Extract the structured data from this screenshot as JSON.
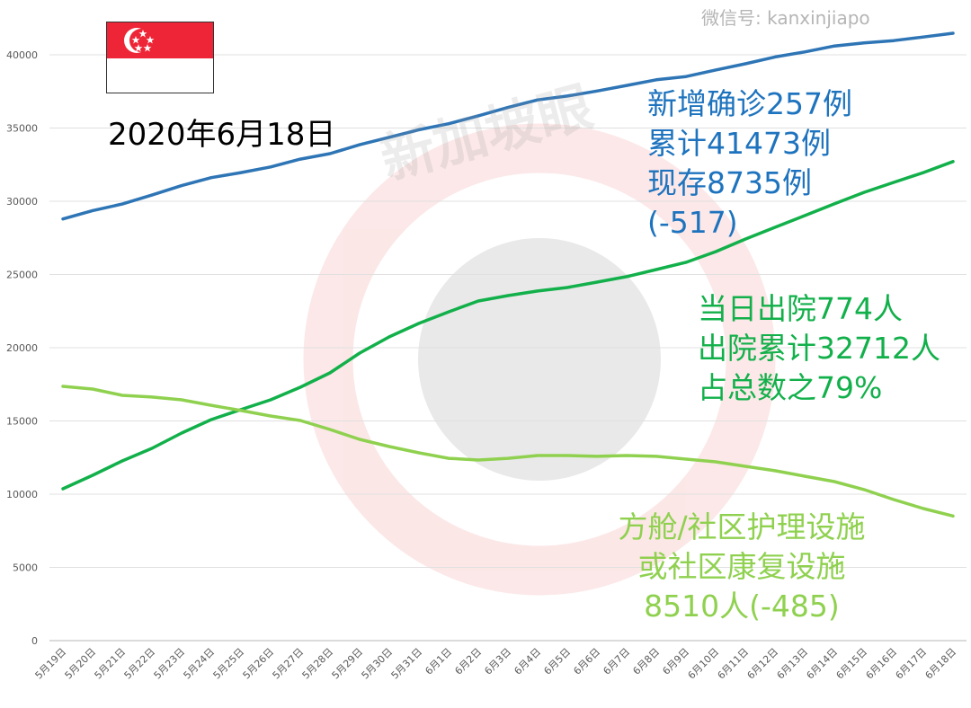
{
  "chart_data": {
    "type": "line",
    "title": "",
    "xlabel": "",
    "ylabel": "",
    "ylim": [
      0,
      40000
    ],
    "yticks": [
      0,
      5000,
      10000,
      15000,
      20000,
      25000,
      30000,
      35000,
      40000
    ],
    "grid": true,
    "categories": [
      "5月19日",
      "5月20日",
      "5月21日",
      "5月22日",
      "5月23日",
      "5月24日",
      "5月25日",
      "5月26日",
      "5月27日",
      "5月28日",
      "5月29日",
      "5月30日",
      "5月31日",
      "6月1日",
      "6月2日",
      "6月3日",
      "6月4日",
      "6月5日",
      "6月6日",
      "6月7日",
      "6月8日",
      "6月9日",
      "6月10日",
      "6月11日",
      "6月12日",
      "6月13日",
      "6月14日",
      "6月15日",
      "6月16日",
      "6月17日",
      "6月18日"
    ],
    "series": [
      {
        "color": "#2e75b6",
        "values": [
          28794,
          29364,
          29812,
          30426,
          31068,
          31616,
          31960,
          32343,
          32876,
          33249,
          33860,
          34366,
          34884,
          35292,
          35836,
          36405,
          36922,
          37183,
          37527,
          37910,
          38296,
          38514,
          38965,
          39387,
          39850,
          40197,
          40604,
          40818,
          40969,
          41216,
          41473
        ]
      },
      {
        "color": "#12b04a",
        "values": [
          10370,
          11290,
          12270,
          13130,
          14170,
          15090,
          15770,
          16440,
          17300,
          18280,
          19630,
          20740,
          21660,
          22450,
          23190,
          23560,
          23870,
          24110,
          24480,
          24850,
          25340,
          25830,
          26560,
          27420,
          28220,
          29020,
          29820,
          30610,
          31290,
          31960,
          32712
        ]
      },
      {
        "color": "#8fd14f",
        "values": [
          17360,
          17180,
          16750,
          16630,
          16440,
          16070,
          15710,
          15340,
          15030,
          14420,
          13740,
          13250,
          12820,
          12450,
          12330,
          12450,
          12640,
          12640,
          12580,
          12640,
          12580,
          12390,
          12210,
          11900,
          11600,
          11230,
          10860,
          10310,
          9630,
          9020,
          8510
        ]
      }
    ]
  },
  "date_label": "2020年6月18日",
  "flag": {
    "country": "Singapore",
    "colors": [
      "#ee2536",
      "#ffffff"
    ]
  },
  "annotations": {
    "confirmed": [
      "新增确诊257例",
      "累计41473例",
      "现存8735例",
      "(-517)"
    ],
    "discharged": [
      "当日出院774人",
      "出院累计32712人",
      "占总数之79%"
    ],
    "facilities": [
      "方舱/社区护理设施",
      "或社区康复设施",
      "8510人(-485)"
    ]
  },
  "watermarks": {
    "top": "新加坡眼",
    "bottom": "微信号: kanxinjiapo"
  }
}
